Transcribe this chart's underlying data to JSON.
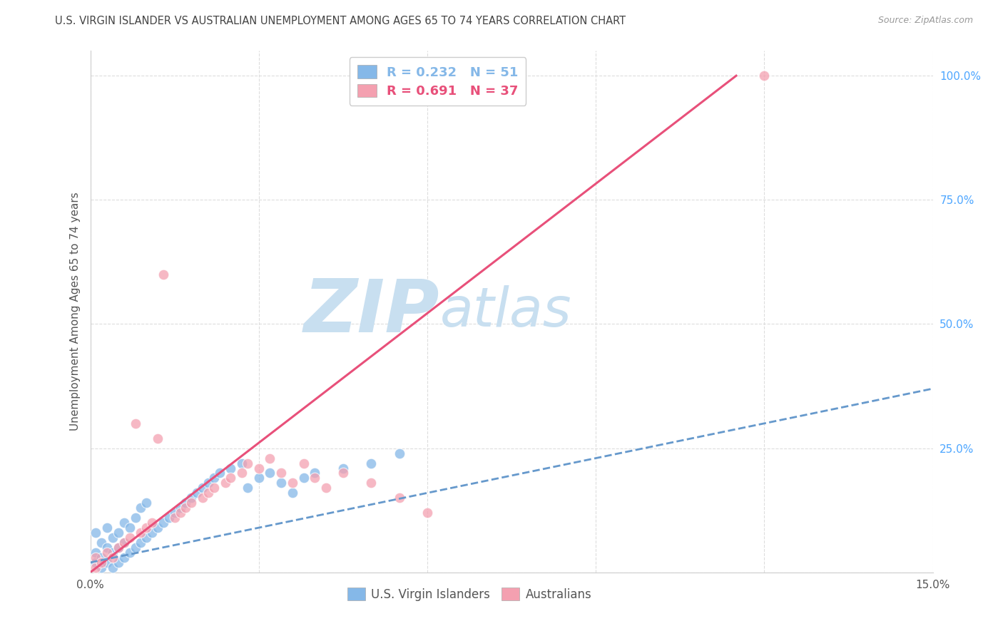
{
  "title": "U.S. VIRGIN ISLANDER VS AUSTRALIAN UNEMPLOYMENT AMONG AGES 65 TO 74 YEARS CORRELATION CHART",
  "source": "Source: ZipAtlas.com",
  "ylabel": "Unemployment Among Ages 65 to 74 years",
  "x_min": 0.0,
  "x_max": 0.15,
  "y_min": 0.0,
  "y_max": 1.05,
  "x_ticks": [
    0.0,
    0.03,
    0.06,
    0.09,
    0.12,
    0.15
  ],
  "x_tick_labels": [
    "0.0%",
    "",
    "",
    "",
    "",
    "15.0%"
  ],
  "y_ticks_right": [
    0.25,
    0.5,
    0.75,
    1.0
  ],
  "y_tick_labels_right": [
    "25.0%",
    "50.0%",
    "75.0%",
    "100.0%"
  ],
  "grid_color": "#dddddd",
  "background_color": "#ffffff",
  "watermark_zip": "ZIP",
  "watermark_atlas": "atlas",
  "watermark_color": "#c8dff0",
  "legend_R1": "R = 0.232",
  "legend_N1": "N = 51",
  "legend_R2": "R = 0.691",
  "legend_N2": "N = 37",
  "color_virgin": "#85b8e8",
  "color_australia": "#f4a0b0",
  "trendline_virgin_color": "#6699cc",
  "trendline_australia_color": "#e8507a",
  "virgin_scatter_x": [
    0.001,
    0.001,
    0.001,
    0.002,
    0.002,
    0.002,
    0.003,
    0.003,
    0.003,
    0.004,
    0.004,
    0.004,
    0.005,
    0.005,
    0.005,
    0.006,
    0.006,
    0.006,
    0.007,
    0.007,
    0.008,
    0.008,
    0.009,
    0.009,
    0.01,
    0.01,
    0.011,
    0.012,
    0.013,
    0.014,
    0.015,
    0.016,
    0.017,
    0.018,
    0.019,
    0.02,
    0.021,
    0.022,
    0.023,
    0.025,
    0.027,
    0.028,
    0.03,
    0.032,
    0.034,
    0.036,
    0.038,
    0.04,
    0.045,
    0.05,
    0.055
  ],
  "virgin_scatter_y": [
    0.02,
    0.04,
    0.08,
    0.01,
    0.03,
    0.06,
    0.02,
    0.05,
    0.09,
    0.01,
    0.04,
    0.07,
    0.02,
    0.05,
    0.08,
    0.03,
    0.06,
    0.1,
    0.04,
    0.09,
    0.05,
    0.11,
    0.06,
    0.13,
    0.07,
    0.14,
    0.08,
    0.09,
    0.1,
    0.11,
    0.12,
    0.13,
    0.14,
    0.15,
    0.16,
    0.17,
    0.18,
    0.19,
    0.2,
    0.21,
    0.22,
    0.17,
    0.19,
    0.2,
    0.18,
    0.16,
    0.19,
    0.2,
    0.21,
    0.22,
    0.24
  ],
  "australia_scatter_x": [
    0.001,
    0.001,
    0.002,
    0.003,
    0.004,
    0.005,
    0.006,
    0.007,
    0.008,
    0.009,
    0.01,
    0.011,
    0.012,
    0.013,
    0.015,
    0.016,
    0.017,
    0.018,
    0.02,
    0.021,
    0.022,
    0.024,
    0.025,
    0.027,
    0.028,
    0.03,
    0.032,
    0.034,
    0.036,
    0.038,
    0.04,
    0.042,
    0.045,
    0.05,
    0.055,
    0.06,
    0.12
  ],
  "australia_scatter_y": [
    0.01,
    0.03,
    0.02,
    0.04,
    0.03,
    0.05,
    0.06,
    0.07,
    0.3,
    0.08,
    0.09,
    0.1,
    0.27,
    0.6,
    0.11,
    0.12,
    0.13,
    0.14,
    0.15,
    0.16,
    0.17,
    0.18,
    0.19,
    0.2,
    0.22,
    0.21,
    0.23,
    0.2,
    0.18,
    0.22,
    0.19,
    0.17,
    0.2,
    0.18,
    0.15,
    0.12,
    1.0
  ],
  "aus_trendline_x": [
    0.0,
    0.115
  ],
  "aus_trendline_y": [
    0.0,
    1.0
  ],
  "virgin_trendline_x": [
    0.0,
    0.15
  ],
  "virgin_trendline_y": [
    0.02,
    0.37
  ]
}
